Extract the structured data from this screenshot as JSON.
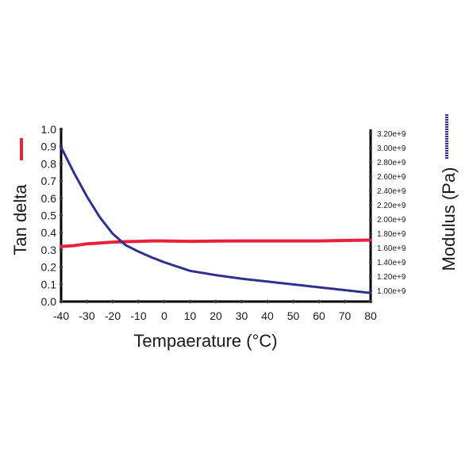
{
  "chart_data": {
    "type": "line",
    "xlabel": "Tempaerature (°C)",
    "ylabel_left": "Tan delta",
    "ylabel_right": "Modulus (Pa)",
    "xlim": [
      -40,
      80
    ],
    "ylim_left": [
      0.0,
      1.0
    ],
    "ylim_right": [
      850000000.0,
      3260000000.0
    ],
    "x_ticks": [
      "-40",
      "-30",
      "-20",
      "-10",
      "0",
      "10",
      "20",
      "30",
      "40",
      "50",
      "60",
      "70",
      "80"
    ],
    "x_tick_values": [
      -40,
      -30,
      -20,
      -10,
      0,
      10,
      20,
      30,
      40,
      50,
      60,
      70,
      80
    ],
    "y_left_ticks": [
      "0.0",
      "0.1",
      "0.2",
      "0.3",
      "0.4",
      "0.5",
      "0.6",
      "0.7",
      "0.8",
      "0.9",
      "1.0"
    ],
    "y_left_tick_values": [
      0.0,
      0.1,
      0.2,
      0.3,
      0.4,
      0.5,
      0.6,
      0.7,
      0.8,
      0.9,
      1.0
    ],
    "y_right_ticks": [
      "1.00e+9",
      "1.20e+9",
      "1.40e+9",
      "1.60e+9",
      "1.80e+9",
      "2.00e+9",
      "2.20e+9",
      "2.40e+9",
      "2.60e+9",
      "2.80e+9",
      "3.00e+9",
      "3.20e+9"
    ],
    "y_right_tick_values": [
      1000000000.0,
      1200000000.0,
      1400000000.0,
      1600000000.0,
      1800000000.0,
      2000000000.0,
      2200000000.0,
      2400000000.0,
      2600000000.0,
      2800000000.0,
      3000000000.0,
      3200000000.0
    ],
    "series": [
      {
        "axis": "left",
        "color": "#e8203a",
        "x": [
          -40,
          -35,
          -30,
          -25,
          -20,
          -15,
          -10,
          -5,
          0,
          10,
          20,
          30,
          40,
          50,
          60,
          70,
          80
        ],
        "y": [
          0.32,
          0.325,
          0.335,
          0.34,
          0.345,
          0.348,
          0.35,
          0.352,
          0.352,
          0.35,
          0.351,
          0.352,
          0.352,
          0.352,
          0.352,
          0.355,
          0.357
        ]
      },
      {
        "axis": "right",
        "color": "#2e2f8f",
        "x": [
          -40,
          -35,
          -30,
          -25,
          -20,
          -15,
          -10,
          -5,
          0,
          5,
          10,
          20,
          30,
          40,
          50,
          60,
          70,
          80
        ],
        "y": [
          3010000000.0,
          2650000000.0,
          2320000000.0,
          2030000000.0,
          1800000000.0,
          1640000000.0,
          1550000000.0,
          1470000000.0,
          1400000000.0,
          1340000000.0,
          1280000000.0,
          1220000000.0,
          1170000000.0,
          1130000000.0,
          1090000000.0,
          1050000000.0,
          1010000000.0,
          970000000.0
        ]
      }
    ],
    "legend": {
      "left_marker_color": "#e8203a",
      "right_marker_color": "#2e2f8f"
    }
  }
}
